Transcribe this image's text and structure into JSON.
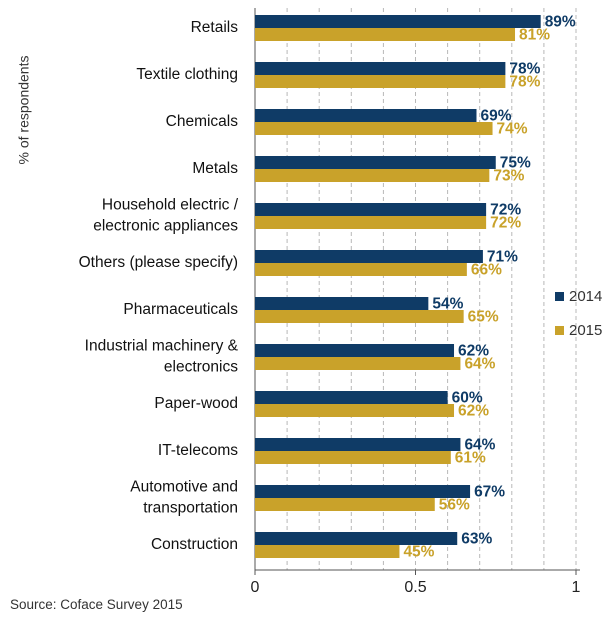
{
  "chart_data": {
    "type": "bar",
    "orientation": "horizontal",
    "ylabel": "% of respondents",
    "categories": [
      "Retails",
      "Textile clothing",
      "Chemicals",
      "Metals",
      "Household electric /\nelectronic appliances",
      "Others (please specify)",
      "Pharmaceuticals",
      "Industrial machinery &\nelectronics",
      "Paper-wood",
      "IT-telecoms",
      "Automotive and\ntransportation",
      "Construction"
    ],
    "series": [
      {
        "name": "2014",
        "color": "#0f3b66",
        "values": [
          0.89,
          0.78,
          0.69,
          0.75,
          0.72,
          0.71,
          0.54,
          0.62,
          0.6,
          0.64,
          0.67,
          0.63
        ],
        "labels": [
          "89%",
          "78%",
          "69%",
          "75%",
          "72%",
          "71%",
          "54%",
          "62%",
          "60%",
          "64%",
          "67%",
          "63%"
        ]
      },
      {
        "name": "2015",
        "color": "#c9a22a",
        "values": [
          0.81,
          0.78,
          0.74,
          0.73,
          0.72,
          0.66,
          0.65,
          0.64,
          0.62,
          0.61,
          0.56,
          0.45
        ],
        "labels": [
          "81%",
          "78%",
          "74%",
          "73%",
          "72%",
          "66%",
          "65%",
          "64%",
          "62%",
          "61%",
          "56%",
          "45%"
        ]
      }
    ],
    "xlim": [
      0,
      1
    ],
    "xticks": [
      0,
      0.5,
      1
    ],
    "xtick_labels": [
      "0",
      "0.5",
      "1"
    ],
    "grid": true,
    "legend_position": "right"
  },
  "source": "Source: Coface Survey 2015"
}
